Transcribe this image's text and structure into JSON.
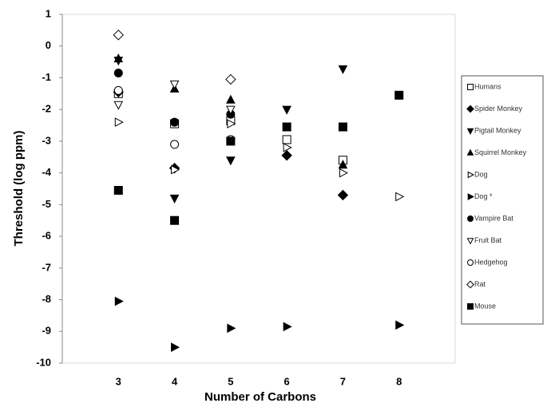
{
  "chart_data": {
    "type": "scatter",
    "x_label": "Number of Carbons",
    "y_label": "Threshold (log ppm)",
    "xlim": [
      2,
      9
    ],
    "xticks": [
      3,
      4,
      5,
      6,
      7,
      8
    ],
    "ylim": [
      -10,
      1
    ],
    "yticks": [
      1,
      0,
      -1,
      -2,
      -3,
      -4,
      -5,
      -6,
      -7,
      -8,
      -9,
      -10
    ],
    "series": [
      {
        "name": "Humans",
        "marker": "square",
        "filled": false,
        "color": "#000000",
        "x": [
          3,
          4,
          5,
          6,
          7
        ],
        "values": [
          -1.5,
          -2.45,
          -2.35,
          -2.95,
          -3.6
        ]
      },
      {
        "name": "Spider Monkey",
        "marker": "diamond",
        "filled": true,
        "color": "#000000",
        "x": [
          3,
          4,
          6,
          7
        ],
        "values": [
          -1.45,
          -3.85,
          -3.45,
          -4.7
        ]
      },
      {
        "name": "Pigtail Monkey",
        "marker": "triangle-down",
        "filled": true,
        "color": "#000000",
        "x": [
          3,
          4,
          5,
          6,
          7
        ],
        "values": [
          -0.45,
          -4.8,
          -3.6,
          -2.0,
          -0.72
        ]
      },
      {
        "name": "Squirrel Monkey",
        "marker": "triangle-up",
        "filled": true,
        "color": "#000000",
        "x": [
          3,
          4,
          5,
          7
        ],
        "values": [
          -0.4,
          -1.35,
          -1.7,
          -3.75
        ]
      },
      {
        "name": "Dog",
        "marker": "triangle-right",
        "filled": false,
        "color": "#000000",
        "x": [
          3,
          4,
          5,
          6,
          7,
          8
        ],
        "values": [
          -2.4,
          -3.9,
          -2.45,
          -3.2,
          -4.0,
          -4.75
        ]
      },
      {
        "name": "Dog *",
        "marker": "triangle-right",
        "filled": true,
        "color": "#000000",
        "x": [
          3,
          4,
          5,
          6,
          8
        ],
        "values": [
          -8.05,
          -9.5,
          -8.9,
          -8.85,
          -8.8
        ]
      },
      {
        "name": "Vampire Bat",
        "marker": "circle",
        "filled": true,
        "color": "#000000",
        "x": [
          3,
          4,
          5
        ],
        "values": [
          -0.85,
          -2.4,
          -2.15
        ]
      },
      {
        "name": "Fruit Bat",
        "marker": "triangle-down",
        "filled": false,
        "color": "#000000",
        "x": [
          3,
          4,
          5
        ],
        "values": [
          -1.85,
          -1.2,
          -2.0
        ]
      },
      {
        "name": "Hedgehog",
        "marker": "circle",
        "filled": false,
        "color": "#000000",
        "x": [
          3,
          4,
          5
        ],
        "values": [
          -1.4,
          -3.1,
          -2.95
        ]
      },
      {
        "name": "Rat",
        "marker": "diamond",
        "filled": false,
        "color": "#000000",
        "x": [
          3,
          5
        ],
        "values": [
          0.35,
          -1.05
        ]
      },
      {
        "name": "Mouse",
        "marker": "square",
        "filled": true,
        "color": "#000000",
        "x": [
          3,
          4,
          5,
          6,
          7,
          8
        ],
        "values": [
          -4.55,
          -5.5,
          -3.0,
          -2.55,
          -2.55,
          -1.55
        ]
      }
    ]
  }
}
